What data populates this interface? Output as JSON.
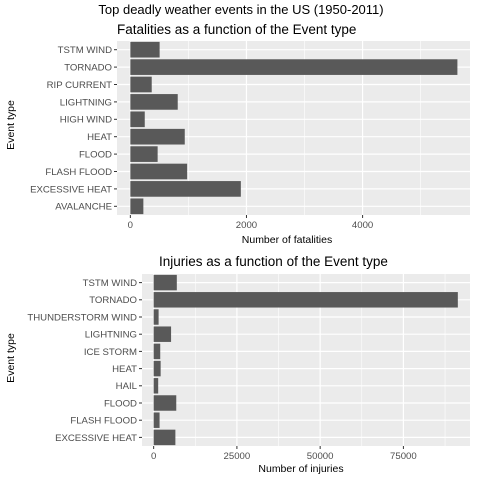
{
  "title": "Top deadly weather events in the US (1950-2011)",
  "chart_data": [
    {
      "type": "bar",
      "orientation": "horizontal",
      "title": "Fatalities as a function of the Event type",
      "xlabel": "Number of fatalities",
      "ylabel": "Event type",
      "xlim": [
        -230,
        5850
      ],
      "xticks": [
        0,
        2000,
        4000
      ],
      "xtick_labels": [
        "0",
        "2000",
        "4000"
      ],
      "grid": true,
      "bar_color": "#595959",
      "panel_color": "#ebebeb",
      "categories": [
        "TSTM WIND",
        "TORNADO",
        "RIP CURRENT",
        "LIGHTNING",
        "HIGH WIND",
        "HEAT",
        "FLOOD",
        "FLASH FLOOD",
        "EXCESSIVE HEAT",
        "AVALANCHE"
      ],
      "values": [
        504,
        5633,
        368,
        816,
        248,
        937,
        470,
        978,
        1903,
        224
      ]
    },
    {
      "type": "bar",
      "orientation": "horizontal",
      "title": "Injuries as a function of the Event type",
      "xlabel": "Number of injuries",
      "ylabel": "Event type",
      "xlim": [
        -3500,
        95000
      ],
      "xticks": [
        0,
        25000,
        50000,
        75000
      ],
      "xtick_labels": [
        "0",
        "25000",
        "50000",
        "75000"
      ],
      "grid": true,
      "bar_color": "#595959",
      "panel_color": "#ebebeb",
      "categories": [
        "TSTM WIND",
        "TORNADO",
        "THUNDERSTORM WIND",
        "LIGHTNING",
        "ICE STORM",
        "HEAT",
        "HAIL",
        "FLOOD",
        "FLASH FLOOD",
        "EXCESSIVE HEAT"
      ],
      "values": [
        6957,
        91346,
        1488,
        5230,
        1975,
        2100,
        1361,
        6789,
        1777,
        6525
      ]
    }
  ]
}
